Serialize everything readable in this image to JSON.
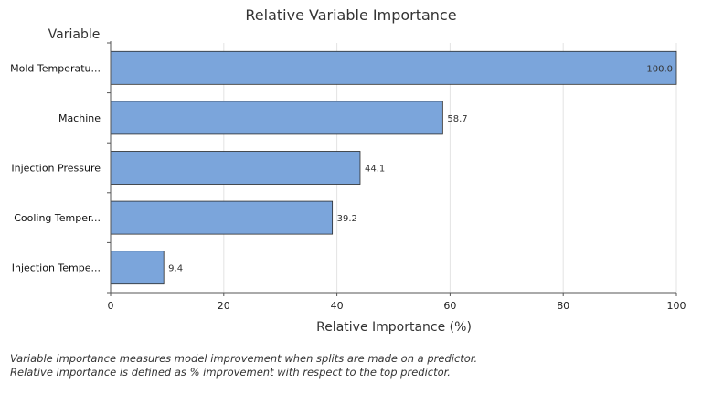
{
  "chart_data": {
    "type": "bar",
    "orientation": "horizontal",
    "title": "Relative Variable Importance",
    "category_axis_label": "Variable",
    "xlabel": "Relative Importance (%)",
    "categories": [
      "Mold Temperatu...",
      "Machine",
      "Injection Pressure",
      "Cooling Temper...",
      "Injection Tempe..."
    ],
    "values": [
      100.0,
      58.7,
      44.1,
      39.2,
      9.4
    ],
    "value_labels": [
      "100.0",
      "58.7",
      "44.1",
      "39.2",
      "9.4"
    ],
    "xlim": [
      0,
      100
    ],
    "xticks": [
      0,
      20,
      40,
      60,
      80,
      100
    ],
    "grid": "vertical",
    "bar_color": "#7ba5db"
  },
  "footnote": {
    "line1": "Variable importance measures model improvement when splits are made on a predictor.",
    "line2": "Relative importance is defined as % improvement with respect to the top predictor."
  }
}
